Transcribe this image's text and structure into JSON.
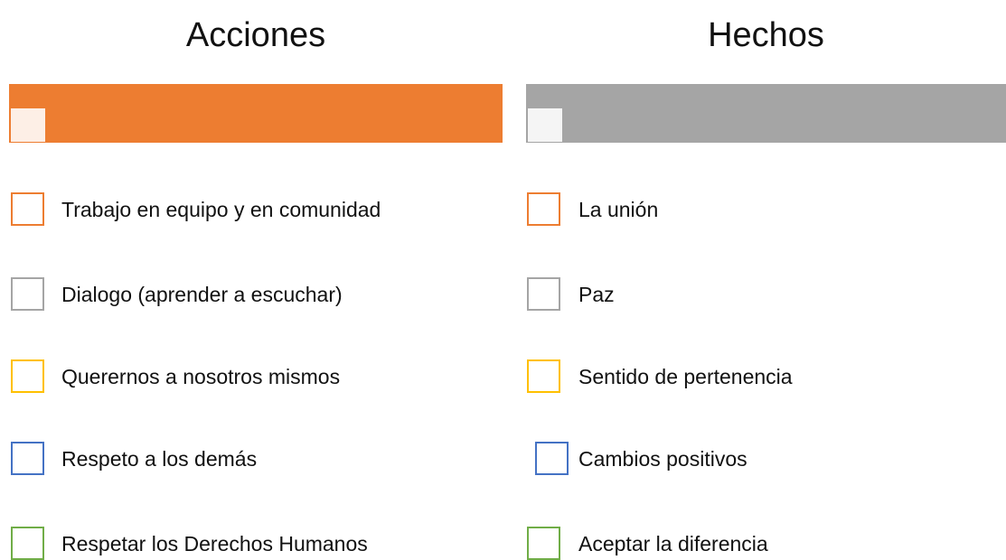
{
  "columns": [
    {
      "title": "Acciones",
      "items": [
        "Trabajo en equipo y en comunidad",
        "Dialogo (aprender a escuchar)",
        "Querernos a nosotros mismos",
        "Respeto a los demás",
        "Respetar los Derechos Humanos"
      ]
    },
    {
      "title": "Hechos",
      "items": [
        "La unión",
        "Paz",
        "Sentido de pertenencia",
        "Cambios positivos",
        "Aceptar la diferencia"
      ]
    }
  ]
}
